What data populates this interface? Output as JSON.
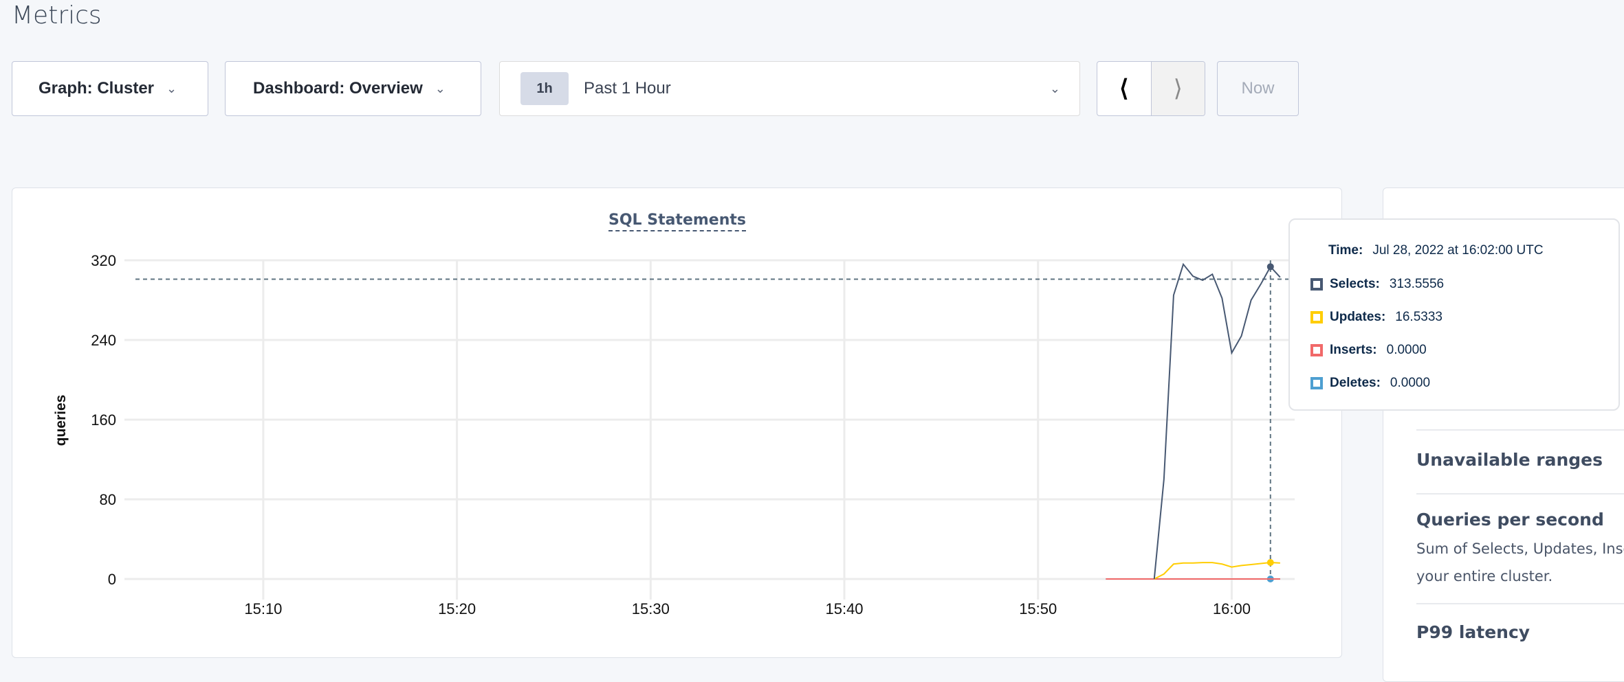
{
  "page": {
    "title": "Metrics"
  },
  "controls": {
    "graph": "Graph: Cluster",
    "dashboard": "Dashboard: Overview",
    "time_badge": "1h",
    "time_range": "Past 1 Hour",
    "prev_icon": "chevron-left-icon",
    "next_icon": "chevron-right-icon",
    "now": "Now"
  },
  "chart_data": {
    "type": "line",
    "title": "SQL Statements",
    "ylabel": "queries",
    "xlabel": "",
    "ylim": [
      0,
      320
    ],
    "yticks": [
      "0",
      "80",
      "160",
      "240",
      "320"
    ],
    "xticks": [
      "15:10",
      "15:20",
      "15:30",
      "15:40",
      "15:50",
      "16:00"
    ],
    "xlim": [
      "15:02:50",
      "16:03:15"
    ],
    "grid": true,
    "crosshair": {
      "x": "16:02:00",
      "y": 301
    },
    "series": [
      {
        "name": "Selects",
        "color": "#475872",
        "x": [
          "15:56:00",
          "15:56:30",
          "15:57:00",
          "15:57:30",
          "15:58:00",
          "15:58:30",
          "15:59:00",
          "15:59:30",
          "16:00:00",
          "16:00:30",
          "16:01:00",
          "16:01:30",
          "16:02:00",
          "16:02:30"
        ],
        "values": [
          0,
          100,
          285,
          316,
          304,
          300,
          306,
          282,
          227,
          244,
          280,
          296,
          313.5556,
          303
        ]
      },
      {
        "name": "Updates",
        "color": "#ffcd02",
        "x": [
          "15:56:00",
          "15:56:30",
          "15:57:00",
          "15:57:30",
          "15:58:00",
          "15:58:30",
          "15:59:00",
          "15:59:30",
          "16:00:00",
          "16:00:30",
          "16:01:00",
          "16:01:30",
          "16:02:00",
          "16:02:30"
        ],
        "values": [
          0,
          5,
          15,
          16,
          16,
          16.5,
          16.5,
          15,
          12,
          13.5,
          14.5,
          15.5,
          16.5333,
          16
        ]
      },
      {
        "name": "Inserts",
        "color": "#f16969",
        "x": [
          "15:53:30",
          "16:02:30"
        ],
        "values": [
          0,
          0
        ]
      },
      {
        "name": "Deletes",
        "color": "#4e9fd1",
        "x": [
          "15:53:30",
          "16:02:30"
        ],
        "values": [
          0,
          0
        ]
      }
    ]
  },
  "tooltip": {
    "time_label": "Time:",
    "time_value": "Jul 28, 2022 at 16:02:00 UTC",
    "rows": [
      {
        "label": "Selects:",
        "value": "313.5556",
        "color": "#475872"
      },
      {
        "label": "Updates:",
        "value": "16.5333",
        "color": "#ffcd02"
      },
      {
        "label": "Inserts:",
        "value": "0.0000",
        "color": "#f16969"
      },
      {
        "label": "Deletes:",
        "value": "0.0000",
        "color": "#4e9fd1"
      }
    ]
  },
  "right_panel": {
    "unavailable": "Unavailable ranges",
    "qps_title": "Queries per second",
    "qps_desc_1": "Sum of Selects, Updates, Inser",
    "qps_desc_2": "your entire cluster.",
    "p99": "P99 latency"
  }
}
